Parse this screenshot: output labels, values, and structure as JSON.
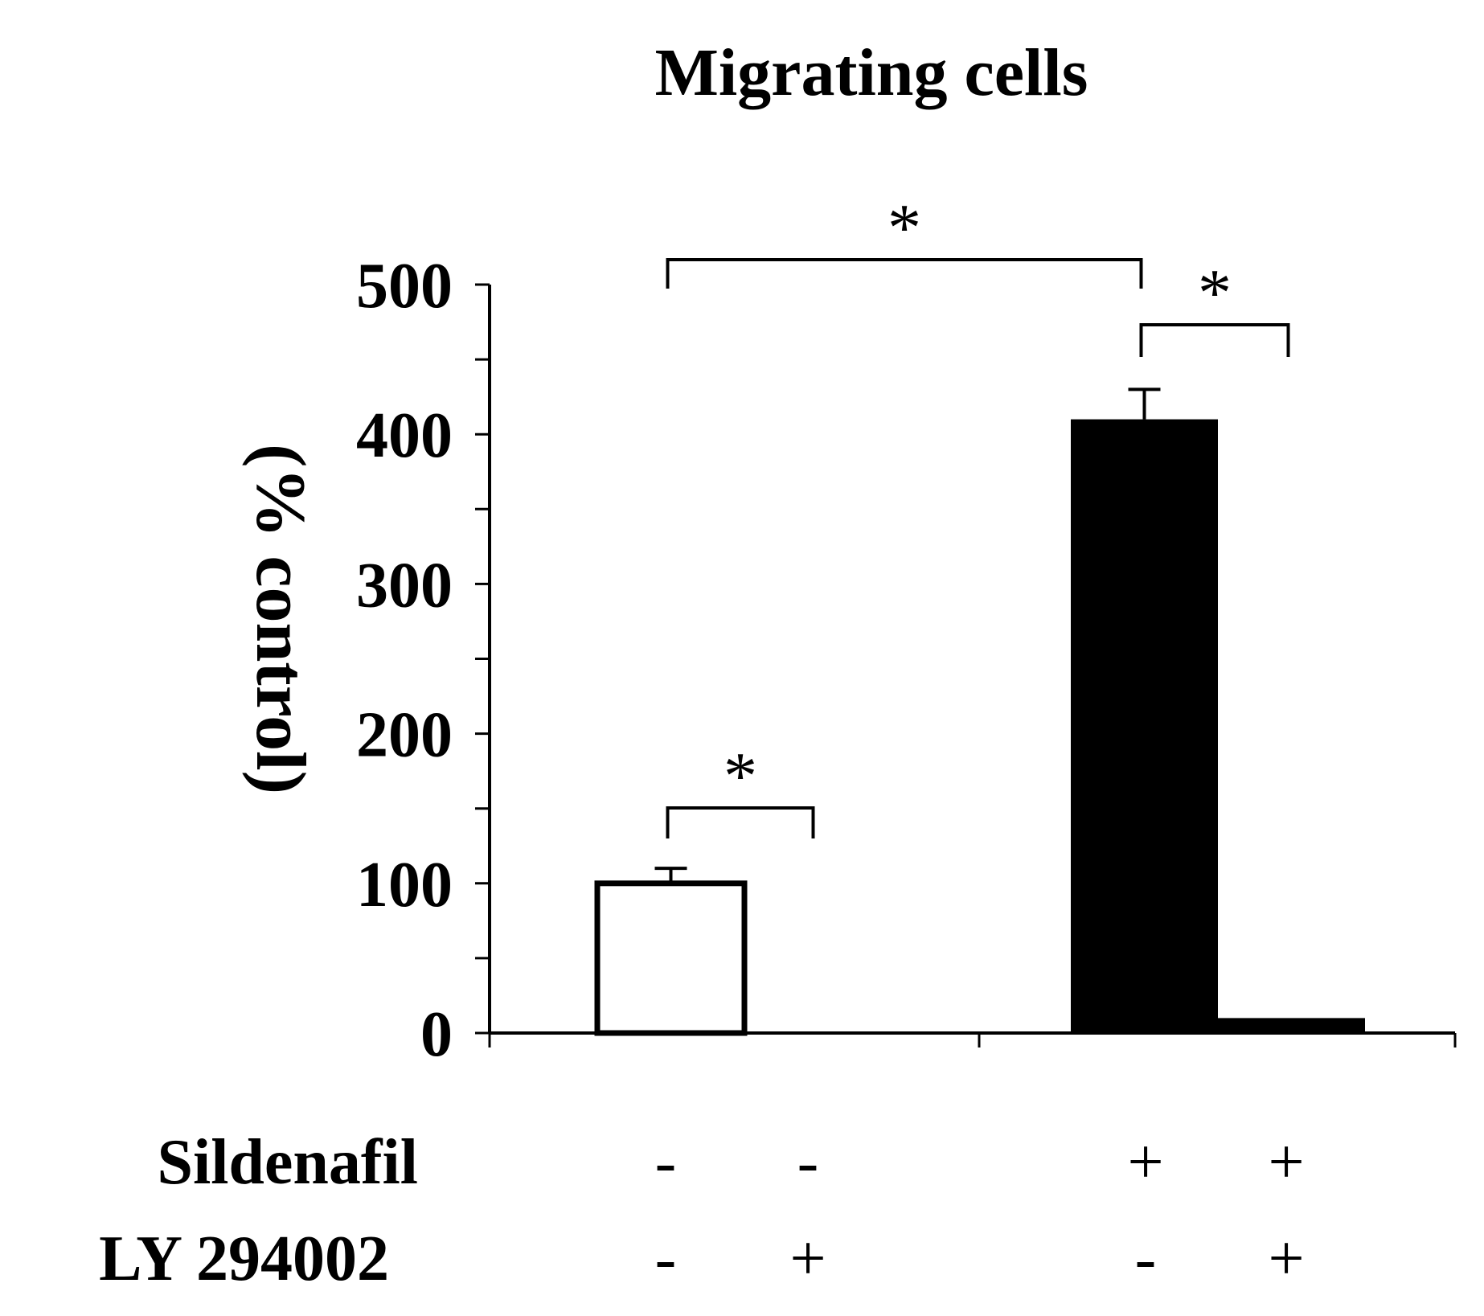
{
  "chart_data": {
    "type": "bar",
    "title": "Migrating cells",
    "ylabel": "(% control)",
    "xlabel": "",
    "ylim": [
      0,
      500
    ],
    "yticks": [
      "0",
      "100",
      "200",
      "300",
      "400",
      "500"
    ],
    "grid": false,
    "conditions": {
      "rows": [
        {
          "label": "Sildenafil",
          "values": [
            "-",
            "-",
            "+",
            "+"
          ]
        },
        {
          "label": "LY 294002",
          "values": [
            "-",
            "+",
            "-",
            "+"
          ]
        }
      ]
    },
    "series": [
      {
        "values": [
          100,
          1,
          410,
          10
        ],
        "errors": [
          10,
          0,
          20,
          0
        ]
      }
    ],
    "bar_fills": [
      "#ffffff",
      "#000000",
      "#000000",
      "#000000"
    ],
    "significance": [
      {
        "from": 0,
        "to": 2,
        "label": "*"
      },
      {
        "from": 2,
        "to": 3,
        "label": "*"
      },
      {
        "from": 0,
        "to": 1,
        "label": "*"
      }
    ]
  }
}
